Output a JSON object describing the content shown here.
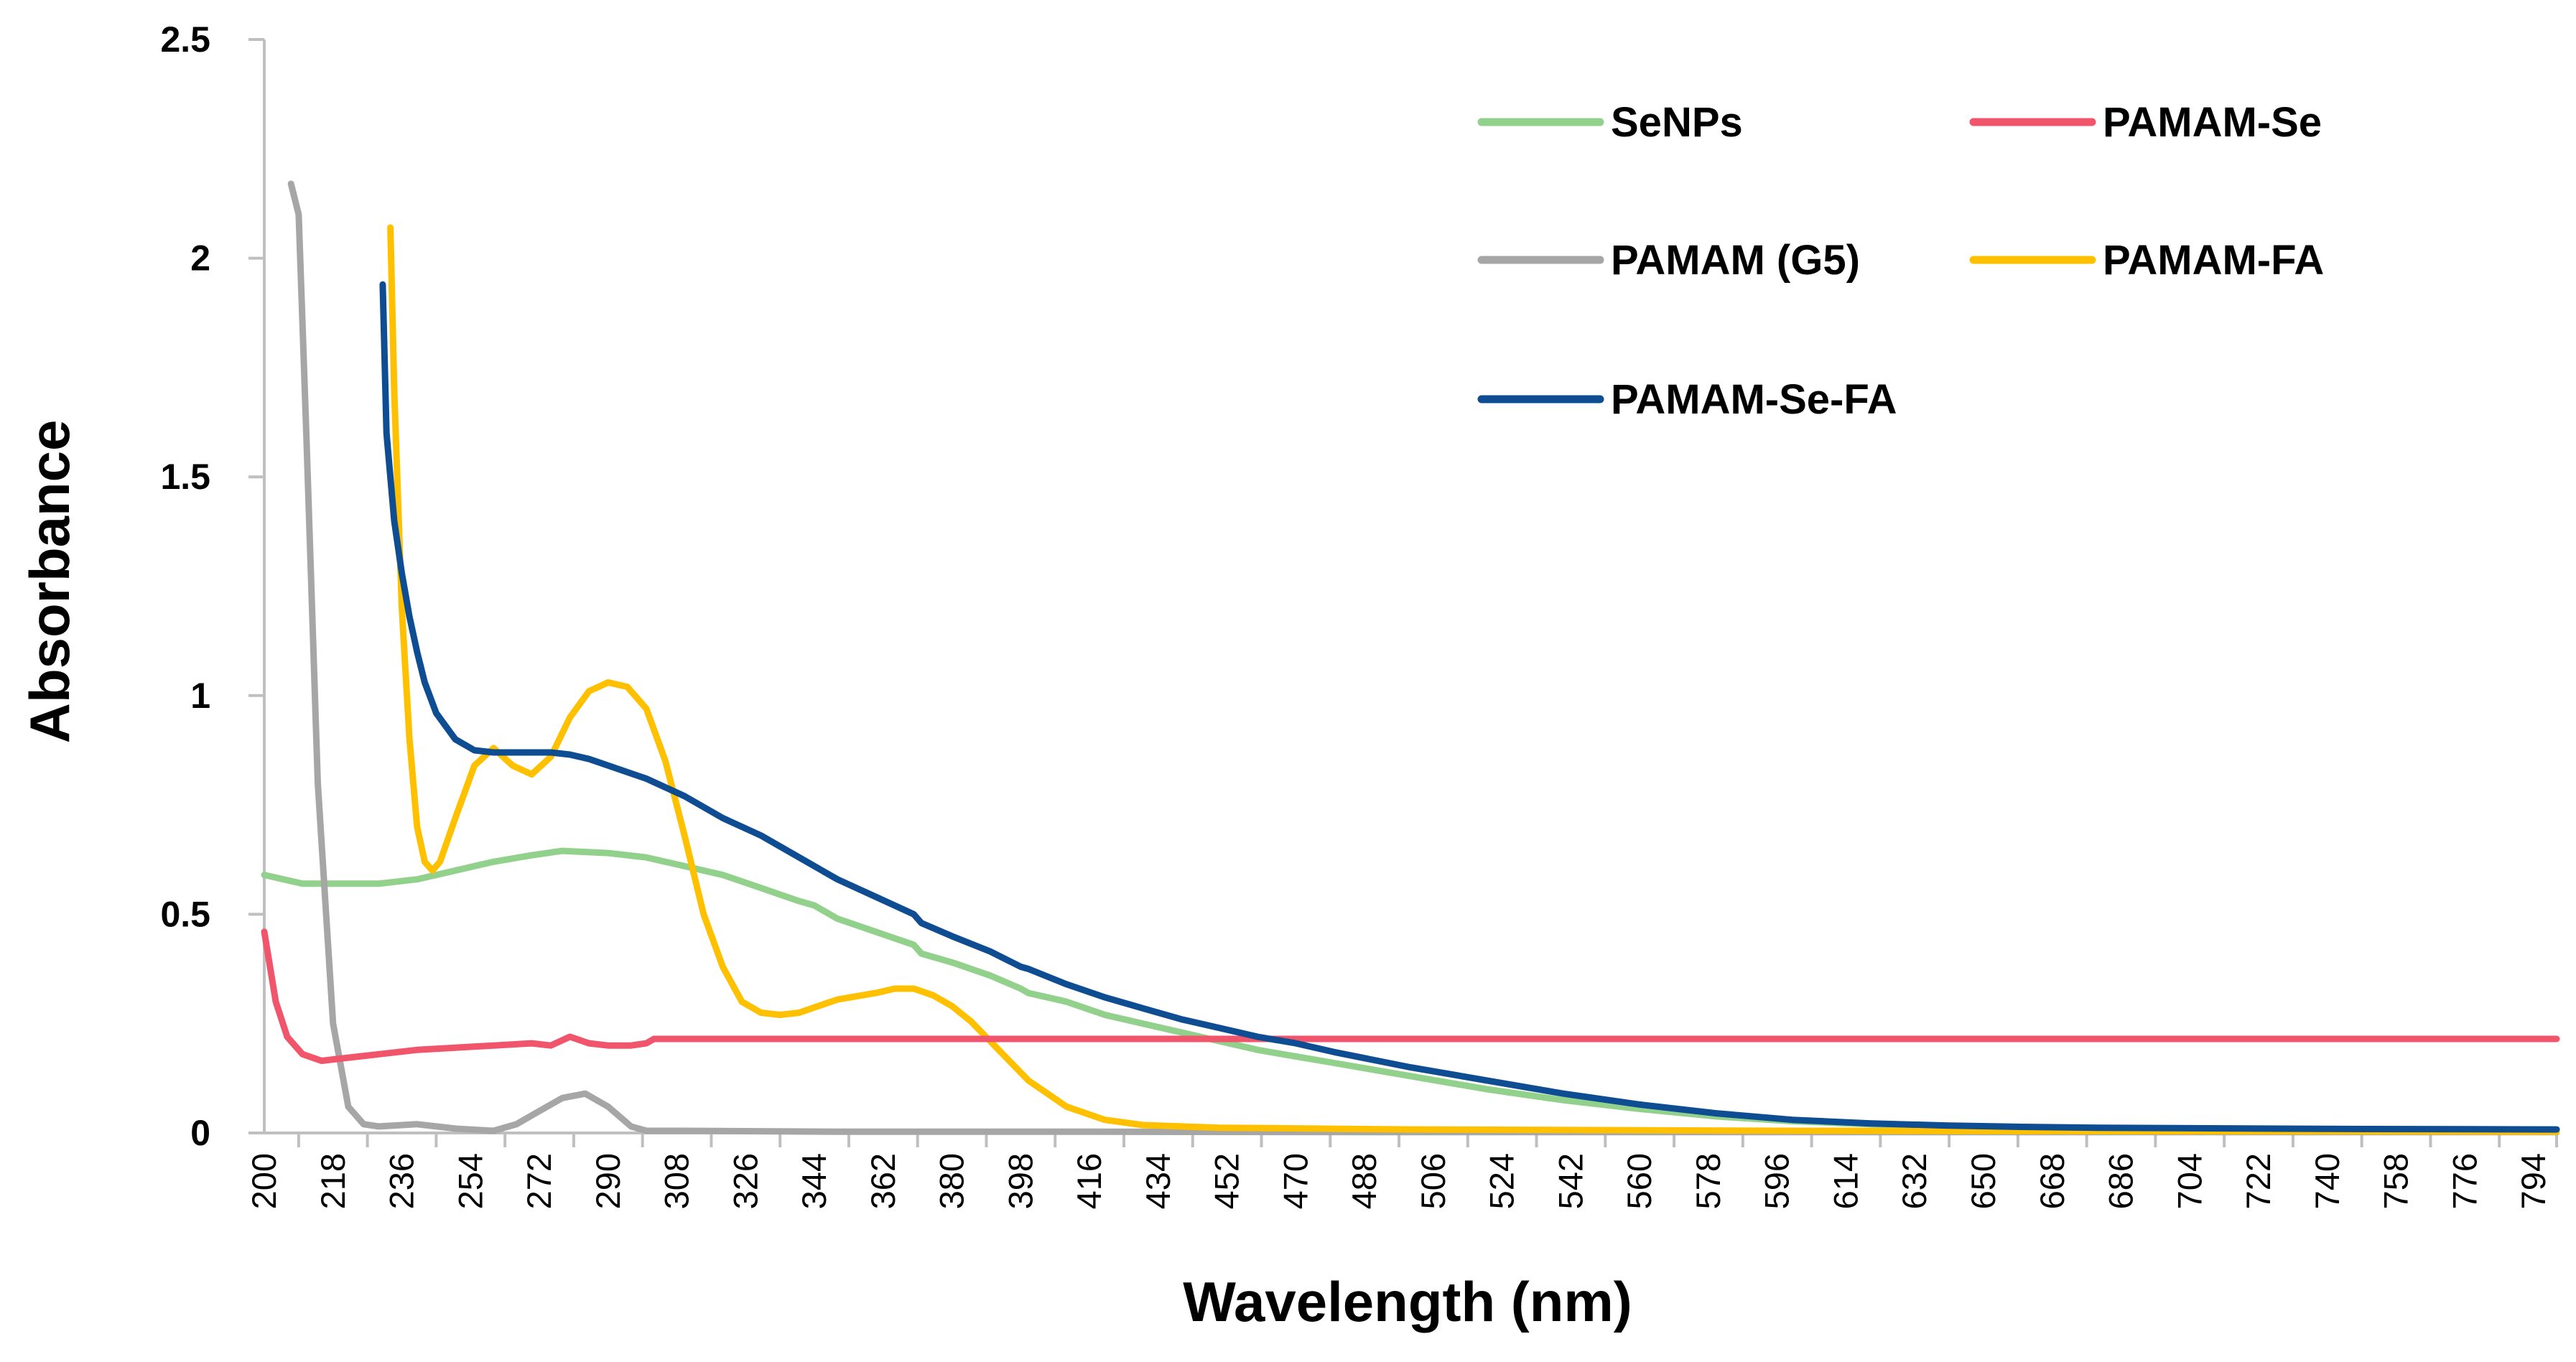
{
  "chart_data": {
    "type": "line",
    "title": "",
    "xlabel": "Wavelength (nm)",
    "ylabel": "Absorbance",
    "xlim": [
      200,
      800
    ],
    "ylim": [
      0,
      2.5
    ],
    "grid": false,
    "legend_position": "top-right",
    "y_ticks": [
      {
        "value": 0,
        "label": "0"
      },
      {
        "value": 0.5,
        "label": "0.5"
      },
      {
        "value": 1,
        "label": "1"
      },
      {
        "value": 1.5,
        "label": "1.5"
      },
      {
        "value": 2,
        "label": "2"
      },
      {
        "value": 2.5,
        "label": "2.5"
      }
    ],
    "x_ticks": [
      "200",
      "218",
      "236",
      "254",
      "272",
      "290",
      "308",
      "326",
      "344",
      "362",
      "380",
      "398",
      "416",
      "434",
      "452",
      "470",
      "488",
      "506",
      "524",
      "542",
      "560",
      "578",
      "596",
      "614",
      "632",
      "650",
      "668",
      "686",
      "704",
      "722",
      "740",
      "758",
      "776",
      "794"
    ],
    "series": [
      {
        "name": "SeNPs",
        "color": "#92D18B",
        "x": [
          200,
          210,
          220,
          230,
          240,
          250,
          260,
          270,
          278,
          290,
          300,
          310,
          320,
          330,
          340,
          344,
          350,
          360,
          370,
          372,
          380,
          390,
          398,
          400,
          410,
          420,
          430,
          440,
          450,
          460,
          470,
          480,
          500,
          520,
          540,
          560,
          580,
          600,
          620,
          640,
          660,
          680,
          700,
          750,
          800
        ],
        "values": [
          0.59,
          0.57,
          0.57,
          0.57,
          0.58,
          0.6,
          0.62,
          0.635,
          0.645,
          0.64,
          0.63,
          0.61,
          0.59,
          0.56,
          0.53,
          0.52,
          0.49,
          0.46,
          0.43,
          0.41,
          0.39,
          0.36,
          0.33,
          0.32,
          0.3,
          0.27,
          0.25,
          0.23,
          0.21,
          0.19,
          0.175,
          0.16,
          0.13,
          0.1,
          0.075,
          0.055,
          0.038,
          0.027,
          0.02,
          0.015,
          0.012,
          0.01,
          0.009,
          0.008,
          0.008
        ]
      },
      {
        "name": "PAMAM-Se",
        "color": "#F1556C",
        "x": [
          200,
          203,
          206,
          210,
          215,
          220,
          230,
          240,
          250,
          260,
          270,
          275,
          280,
          285,
          290,
          296,
          300,
          302,
          310,
          350,
          400,
          500,
          600,
          700,
          800
        ],
        "values": [
          0.46,
          0.3,
          0.22,
          0.18,
          0.165,
          0.17,
          0.18,
          0.19,
          0.195,
          0.2,
          0.205,
          0.2,
          0.22,
          0.205,
          0.2,
          0.2,
          0.205,
          0.215,
          0.215,
          0.215,
          0.215,
          0.215,
          0.215,
          0.215,
          0.215
        ]
      },
      {
        "name": "PAMAM (G5)",
        "color": "#A6A6A6",
        "x": [
          207,
          209,
          211,
          214,
          218,
          222,
          226,
          230,
          240,
          250,
          260,
          266,
          272,
          278,
          284,
          290,
          296,
          300,
          310,
          350,
          400,
          500,
          600,
          700,
          800
        ],
        "values": [
          2.17,
          2.1,
          1.6,
          0.8,
          0.25,
          0.06,
          0.02,
          0.015,
          0.02,
          0.01,
          0.005,
          0.02,
          0.05,
          0.08,
          0.09,
          0.06,
          0.015,
          0.005,
          0.005,
          0.003,
          0.003,
          0.002,
          0.002,
          0.002,
          0.002
        ]
      },
      {
        "name": "PAMAM-FA",
        "color": "#FFC000",
        "x": [
          233,
          234,
          236,
          238,
          240,
          242,
          244,
          246,
          250,
          255,
          260,
          265,
          270,
          275,
          280,
          285,
          290,
          295,
          300,
          305,
          310,
          315,
          320,
          325,
          330,
          335,
          340,
          345,
          350,
          360,
          365,
          370,
          375,
          380,
          385,
          390,
          395,
          400,
          410,
          420,
          430,
          450,
          500,
          600,
          700,
          800
        ],
        "values": [
          2.07,
          1.7,
          1.2,
          0.9,
          0.7,
          0.62,
          0.6,
          0.62,
          0.72,
          0.84,
          0.88,
          0.84,
          0.82,
          0.86,
          0.95,
          1.01,
          1.03,
          1.02,
          0.97,
          0.85,
          0.68,
          0.5,
          0.38,
          0.3,
          0.275,
          0.27,
          0.275,
          0.29,
          0.305,
          0.32,
          0.33,
          0.33,
          0.315,
          0.29,
          0.255,
          0.21,
          0.165,
          0.12,
          0.06,
          0.03,
          0.018,
          0.012,
          0.008,
          0.005,
          0.004,
          0.003
        ]
      },
      {
        "name": "PAMAM-Se-FA",
        "color": "#0E4D92",
        "x": [
          231,
          232,
          234,
          236,
          238,
          240,
          242,
          245,
          250,
          255,
          260,
          265,
          270,
          275,
          280,
          285,
          290,
          300,
          310,
          320,
          330,
          340,
          350,
          360,
          370,
          372,
          380,
          390,
          398,
          400,
          410,
          420,
          430,
          440,
          450,
          460,
          470,
          480,
          500,
          520,
          540,
          560,
          580,
          600,
          620,
          640,
          660,
          680,
          700,
          750,
          800
        ],
        "values": [
          1.94,
          1.6,
          1.4,
          1.28,
          1.18,
          1.1,
          1.03,
          0.96,
          0.9,
          0.875,
          0.87,
          0.87,
          0.87,
          0.87,
          0.865,
          0.855,
          0.84,
          0.81,
          0.77,
          0.72,
          0.68,
          0.63,
          0.58,
          0.54,
          0.5,
          0.48,
          0.45,
          0.415,
          0.38,
          0.375,
          0.34,
          0.31,
          0.285,
          0.26,
          0.24,
          0.22,
          0.205,
          0.185,
          0.15,
          0.12,
          0.09,
          0.065,
          0.045,
          0.03,
          0.022,
          0.017,
          0.014,
          0.012,
          0.011,
          0.009,
          0.008
        ]
      }
    ]
  }
}
